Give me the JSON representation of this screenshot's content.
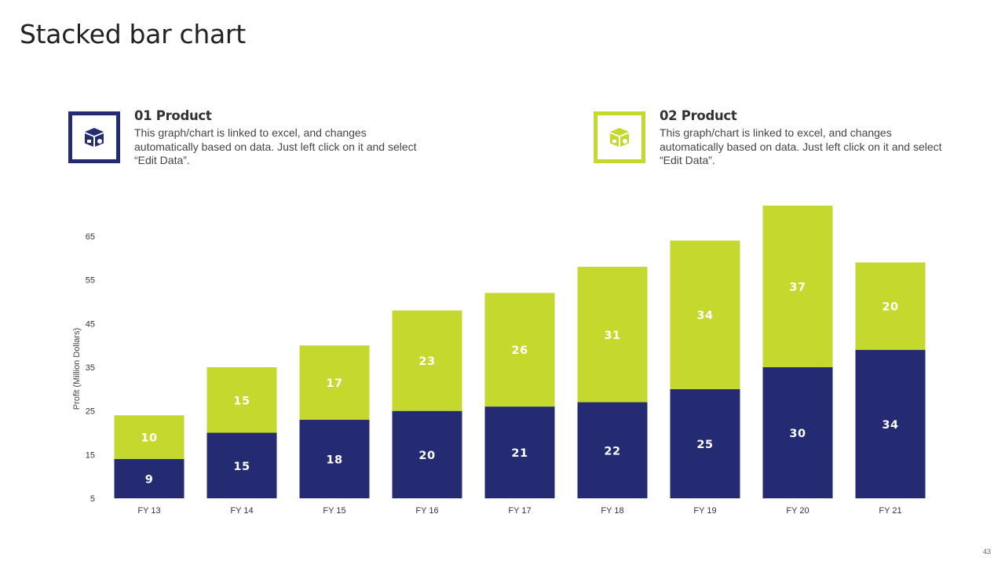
{
  "slide": {
    "title": "Stacked bar chart",
    "page_number": "43"
  },
  "legend": [
    {
      "heading": "01 Product",
      "description": "This graph/chart is linked to excel, and changes automatically based on data. Just left click on it and select “Edit Data”.",
      "color": "#252b73",
      "icon": "package-box-icon"
    },
    {
      "heading": "02 Product",
      "description": "This graph/chart is linked to excel, and changes automatically based on data. Just left click on it and select “Edit Data”.",
      "color": "#c4d82e",
      "icon": "package-box-icon"
    }
  ],
  "chart_data": {
    "type": "bar",
    "stacked": true,
    "categories": [
      "FY 13",
      "FY 14",
      "FY 15",
      "FY 16",
      "FY 17",
      "FY 18",
      "FY 19",
      "FY 20",
      "FY 21"
    ],
    "series": [
      {
        "name": "01 Product",
        "color": "#252b73",
        "values": [
          9,
          15,
          18,
          20,
          21,
          22,
          25,
          30,
          34
        ]
      },
      {
        "name": "02 Product",
        "color": "#c4d82e",
        "values": [
          10,
          15,
          17,
          23,
          26,
          31,
          34,
          37,
          20
        ]
      }
    ],
    "ylabel": "Profit  (Million Dollars)",
    "xlabel": "",
    "ylim": [
      5,
      65
    ],
    "yticks": [
      5,
      15,
      25,
      35,
      45,
      55,
      65
    ],
    "grid": false,
    "data_labels": true
  }
}
